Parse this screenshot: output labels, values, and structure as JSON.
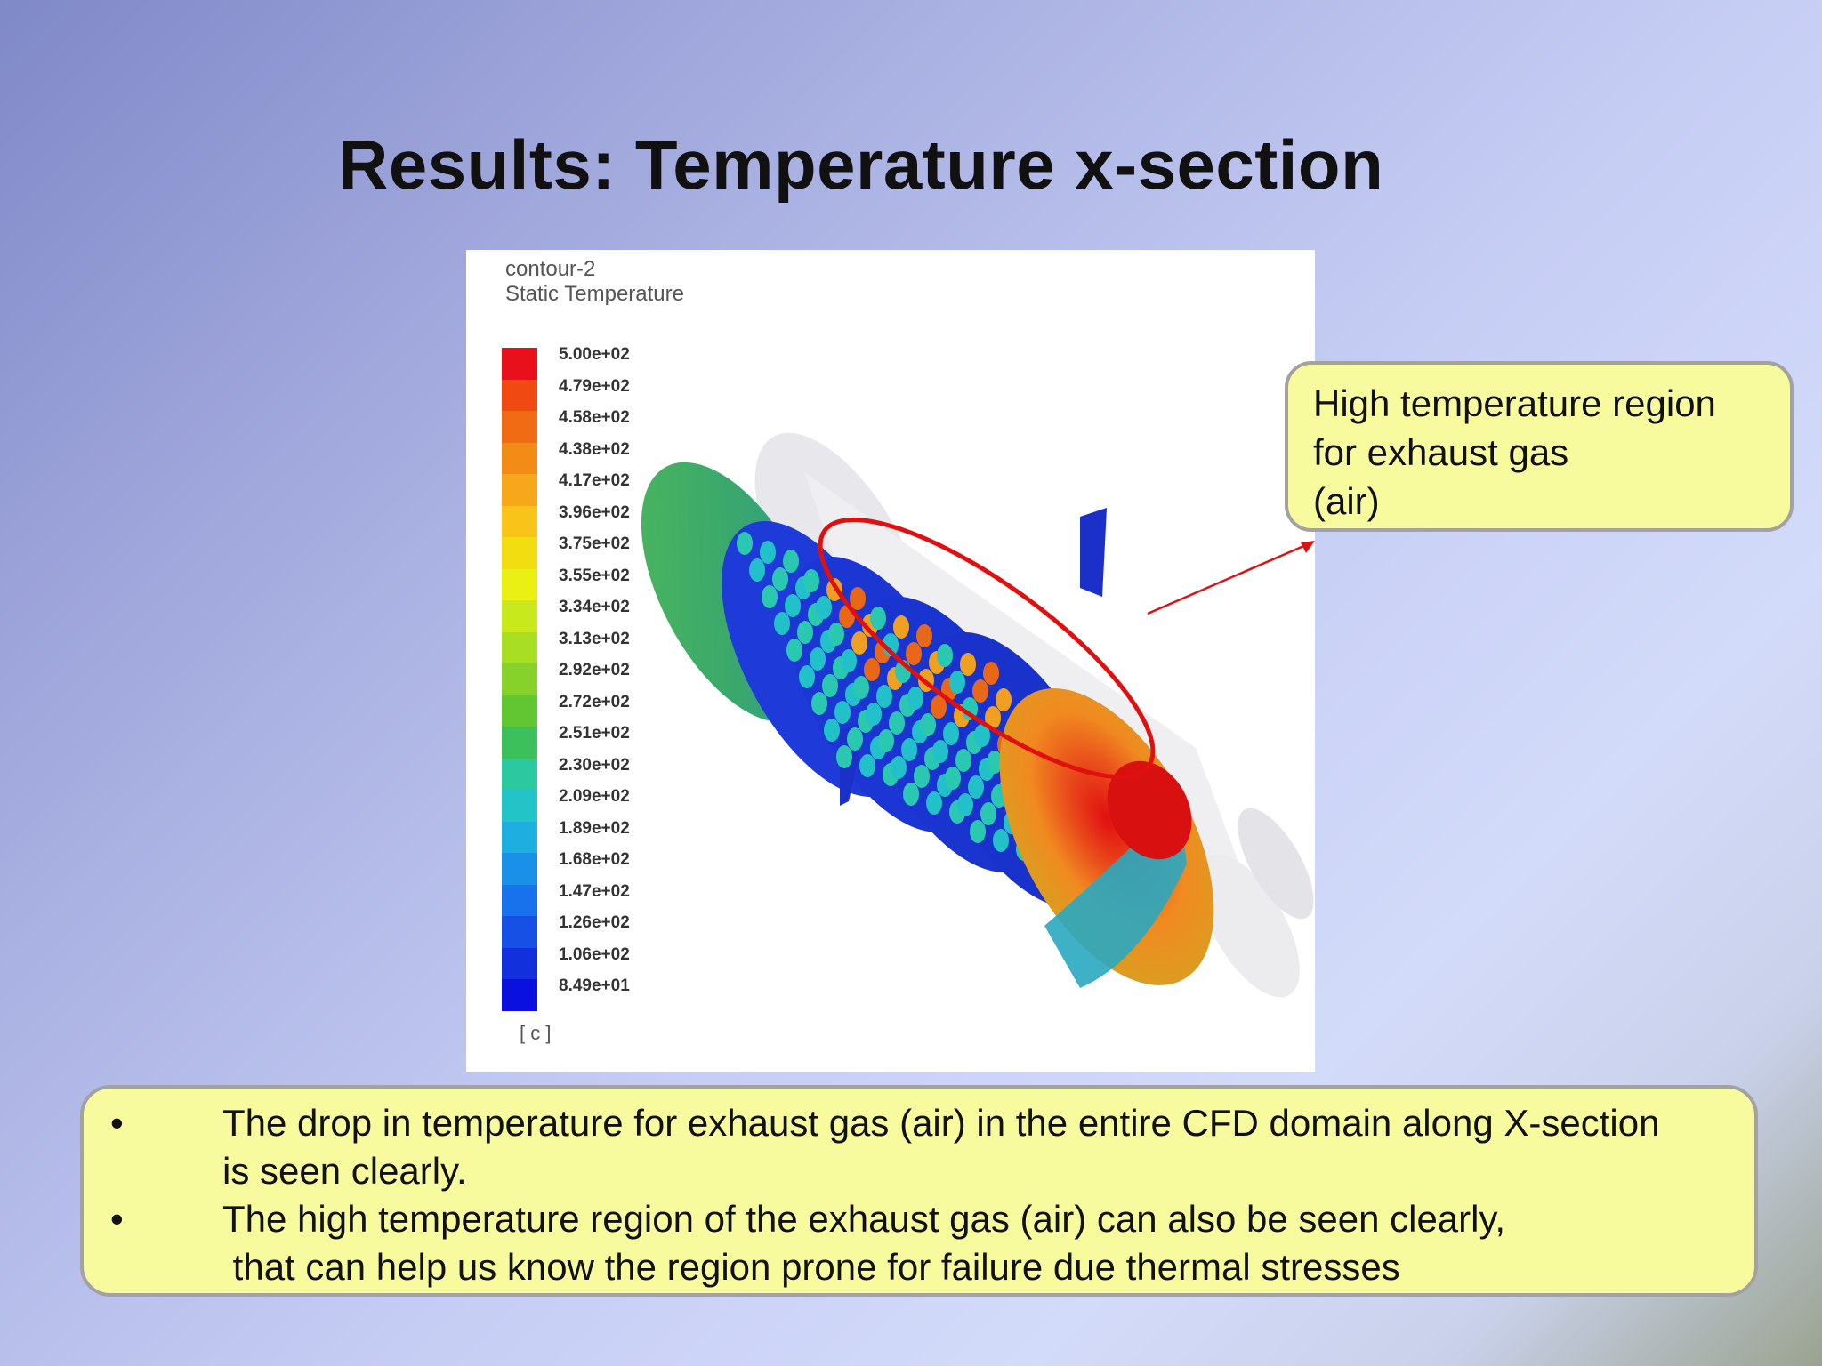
{
  "slide": {
    "title": "Results: Temperature x-section"
  },
  "figure": {
    "contour_name": "contour-2",
    "variable": "Static Temperature",
    "unit": "[ c ]",
    "legend_labels": [
      "5.00e+02",
      "4.79e+02",
      "4.58e+02",
      "4.38e+02",
      "4.17e+02",
      "3.96e+02",
      "3.75e+02",
      "3.55e+02",
      "3.34e+02",
      "3.13e+02",
      "2.92e+02",
      "2.72e+02",
      "2.51e+02",
      "2.30e+02",
      "2.09e+02",
      "1.89e+02",
      "1.68e+02",
      "1.47e+02",
      "1.26e+02",
      "1.06e+02",
      "8.49e+01"
    ],
    "legend_colors": [
      "#e8101a",
      "#ee4a12",
      "#f06c14",
      "#f28c16",
      "#f6a81a",
      "#f8c41a",
      "#f2de10",
      "#eaf014",
      "#c8ea1c",
      "#a8de24",
      "#86d22a",
      "#62c632",
      "#3cc05c",
      "#2cc8a0",
      "#22c4c8",
      "#1eaee0",
      "#1a90e8",
      "#1872ec",
      "#1650e4",
      "#1230dc",
      "#0a10e0"
    ]
  },
  "callout": {
    "lines": [
      "High temperature region",
      "for exhaust gas",
      "(air)"
    ]
  },
  "notes": {
    "bullet": "•",
    "items": [
      {
        "line1": "The drop in temperature for exhaust gas (air) in the entire CFD domain along X-section",
        "line2": "is seen clearly."
      },
      {
        "line1": "The high temperature region of the exhaust gas (air) can also be seen clearly,",
        "line2": " that can help us know the region prone for failure due thermal stresses"
      }
    ]
  },
  "colors": {
    "annotation": "#e01010",
    "callout_fill": "#f7fb9e"
  }
}
